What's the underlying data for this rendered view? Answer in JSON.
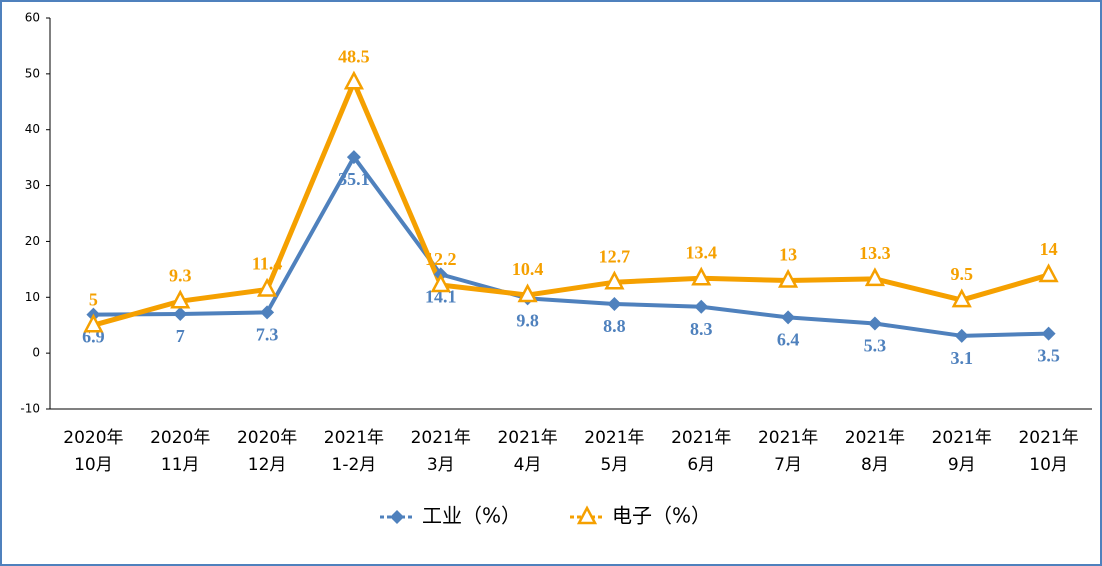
{
  "chart_data": {
    "type": "line",
    "categories": [
      "2020年\n10月",
      "2020年\n11月",
      "2020年\n12月",
      "2021年\n1-2月",
      "2021年\n3月",
      "2021年\n4月",
      "2021年\n5月",
      "2021年\n6月",
      "2021年\n7月",
      "2021年\n8月",
      "2021年\n9月",
      "2021年\n10月"
    ],
    "series": [
      {
        "name": "工业（%）",
        "color": "#4f81bd",
        "marker": "diamond",
        "values": [
          6.9,
          7.0,
          7.3,
          35.1,
          14.1,
          9.8,
          8.8,
          8.3,
          6.4,
          5.3,
          3.1,
          3.5
        ]
      },
      {
        "name": "电子（%）",
        "color": "#f5a000",
        "marker": "triangle",
        "values": [
          5.0,
          9.3,
          11.4,
          48.5,
          12.2,
          10.4,
          12.7,
          13.4,
          13.0,
          13.3,
          9.5,
          14.0
        ]
      }
    ],
    "ylim": [
      -10,
      60
    ],
    "yticks": [
      -10,
      0,
      10,
      20,
      30,
      40,
      50,
      60
    ],
    "grid": false,
    "legend": "bottom"
  }
}
